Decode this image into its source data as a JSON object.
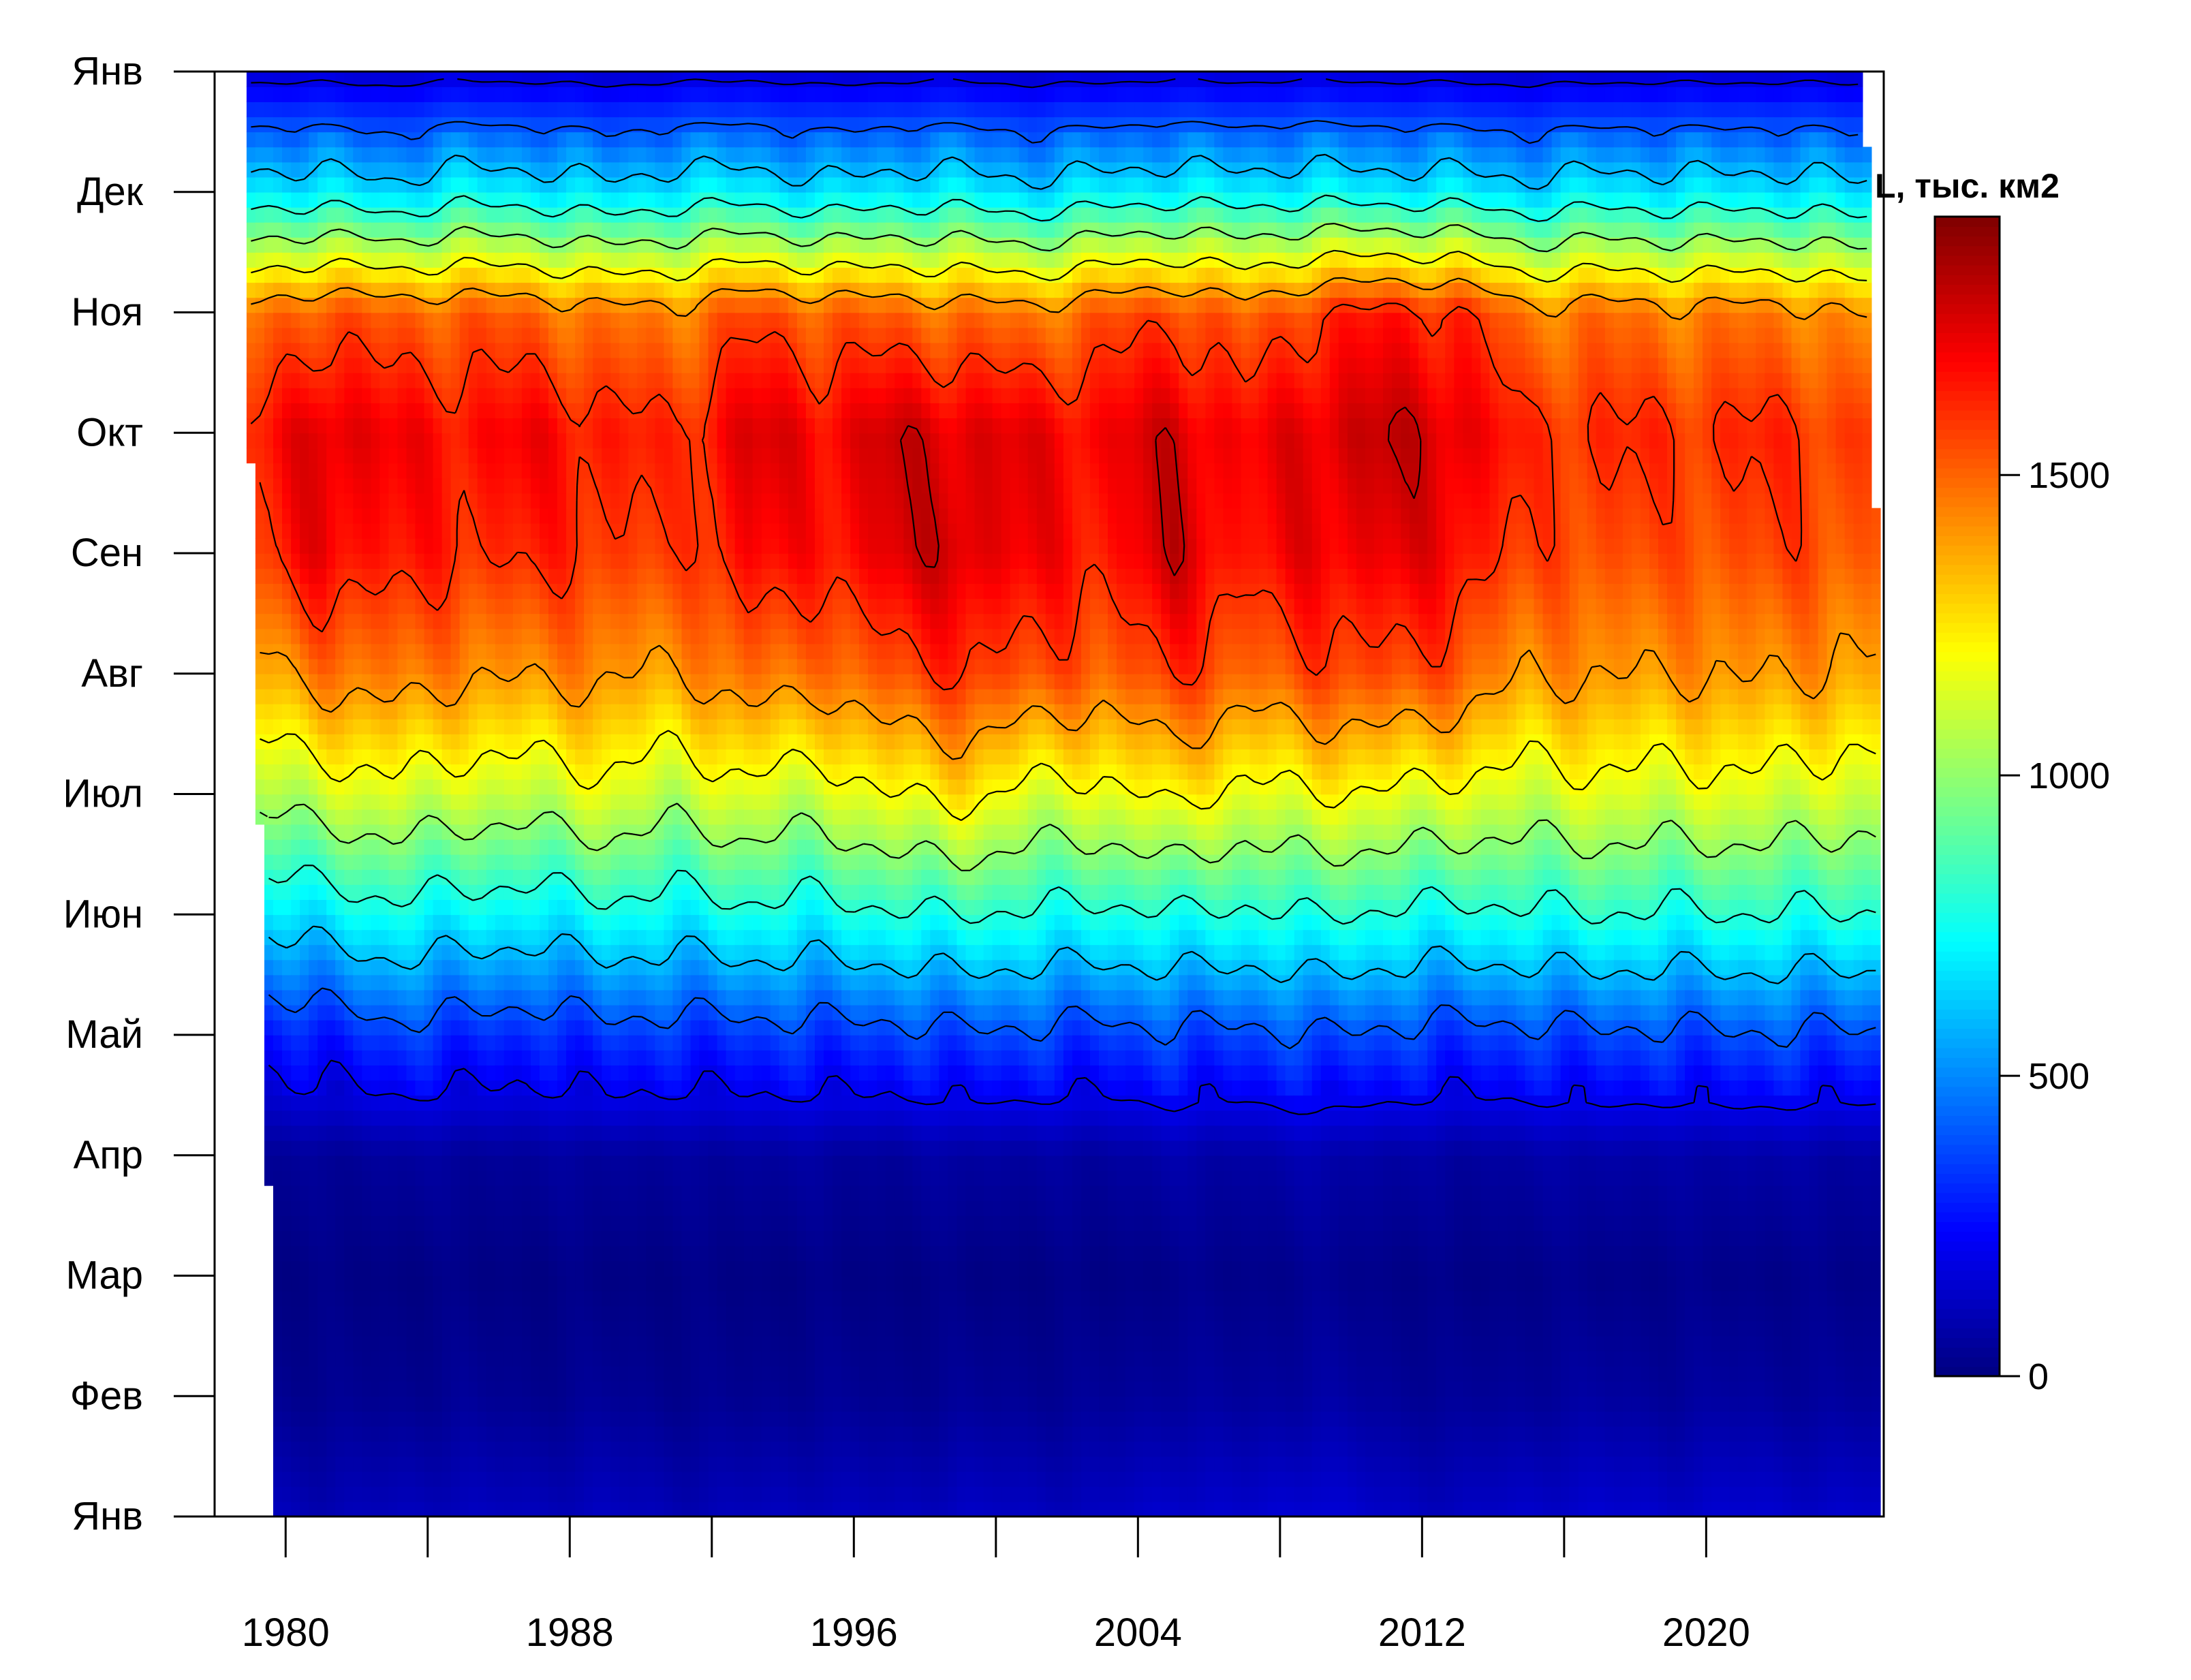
{
  "chart_data": {
    "type": "heatmap",
    "title": "",
    "xlabel": "",
    "ylabel": "",
    "x_ticks": [
      1980,
      1988,
      1996,
      2004,
      2012,
      2020
    ],
    "x_minor_ticks": [
      1980,
      1984,
      1988,
      1992,
      1996,
      2000,
      2004,
      2008,
      2012,
      2016,
      2020
    ],
    "xlim": [
      1978,
      2025
    ],
    "y_ticks": [
      "Янв",
      "Фев",
      "Мар",
      "Апр",
      "Май",
      "Июн",
      "Июл",
      "Авг",
      "Сен",
      "Окт",
      "Ноя",
      "Дек",
      "Янв"
    ],
    "ylim": [
      0,
      12
    ],
    "colorbar": {
      "title": "L, тыс. км2",
      "ticks": [
        0,
        500,
        1000,
        1500
      ],
      "range": [
        0,
        1930
      ]
    },
    "data_start": [
      1978.9,
      10.2
    ],
    "data_end": [
      2024.9,
      6.9
    ],
    "contour_step": 200,
    "description_grid": {
      "years": [
        1979,
        1981,
        1983,
        1985,
        1987,
        1989,
        1991,
        1993,
        1995,
        1997,
        1999,
        2001,
        2003,
        2005,
        2007,
        2009,
        2011,
        2013,
        2015,
        2017,
        2019,
        2021,
        2023,
        2024
      ],
      "months": [
        0,
        1,
        2,
        3,
        4,
        5,
        6,
        7,
        8,
        9,
        10,
        11,
        12
      ],
      "values": [
        [
          120,
          40,
          10,
          50,
          250,
          650,
          1050,
          1350,
          1550,
          1600,
          1450,
          700,
          150
        ],
        [
          100,
          30,
          10,
          40,
          300,
          700,
          1100,
          1450,
          1720,
          1780,
          1550,
          700,
          150
        ],
        [
          110,
          30,
          10,
          60,
          350,
          750,
          1150,
          1480,
          1650,
          1700,
          1500,
          650,
          140
        ],
        [
          120,
          40,
          10,
          50,
          330,
          720,
          1100,
          1420,
          1620,
          1680,
          1520,
          720,
          160
        ],
        [
          110,
          30,
          10,
          50,
          300,
          700,
          1100,
          1420,
          1620,
          1700,
          1500,
          700,
          150
        ],
        [
          120,
          40,
          10,
          60,
          350,
          750,
          1150,
          1430,
          1600,
          1650,
          1450,
          650,
          140
        ],
        [
          100,
          30,
          10,
          50,
          330,
          720,
          1080,
          1380,
          1550,
          1600,
          1450,
          700,
          150
        ],
        [
          110,
          30,
          10,
          60,
          340,
          760,
          1150,
          1500,
          1700,
          1760,
          1550,
          720,
          160
        ],
        [
          120,
          40,
          10,
          60,
          350,
          740,
          1100,
          1450,
          1650,
          1700,
          1520,
          650,
          140
        ],
        [
          110,
          30,
          10,
          50,
          350,
          780,
          1200,
          1550,
          1750,
          1780,
          1500,
          700,
          150
        ],
        [
          130,
          40,
          10,
          70,
          380,
          800,
          1250,
          1600,
          1780,
          1760,
          1480,
          700,
          160
        ],
        [
          120,
          40,
          10,
          60,
          370,
          780,
          1150,
          1550,
          1700,
          1720,
          1450,
          650,
          140
        ],
        [
          120,
          40,
          10,
          60,
          350,
          760,
          1150,
          1500,
          1650,
          1700,
          1520,
          700,
          150
        ],
        [
          150,
          60,
          20,
          80,
          380,
          790,
          1250,
          1600,
          1780,
          1780,
          1580,
          720,
          160
        ],
        [
          140,
          50,
          20,
          70,
          360,
          770,
          1150,
          1500,
          1650,
          1680,
          1480,
          700,
          150
        ],
        [
          170,
          70,
          30,
          90,
          400,
          810,
          1200,
          1550,
          1720,
          1760,
          1600,
          720,
          160
        ],
        [
          130,
          50,
          20,
          70,
          370,
          780,
          1180,
          1570,
          1730,
          1800,
          1650,
          700,
          150
        ],
        [
          120,
          40,
          10,
          60,
          350,
          760,
          1150,
          1520,
          1700,
          1760,
          1620,
          700,
          150
        ],
        [
          140,
          50,
          20,
          70,
          360,
          780,
          1120,
          1400,
          1550,
          1600,
          1450,
          650,
          140
        ],
        [
          150,
          60,
          20,
          80,
          380,
          800,
          1150,
          1420,
          1560,
          1620,
          1480,
          700,
          150
        ],
        [
          140,
          50,
          20,
          70,
          370,
          780,
          1130,
          1400,
          1530,
          1600,
          1450,
          680,
          150
        ],
        [
          150,
          60,
          20,
          80,
          390,
          800,
          1150,
          1420,
          1560,
          1620,
          1460,
          690,
          150
        ],
        [
          140,
          50,
          20,
          70,
          380,
          790,
          1120,
          1400,
          1550,
          1600,
          1450,
          680,
          150
        ],
        [
          140,
          50,
          20,
          70,
          380,
          790,
          1100,
          1380,
          1530,
          1580,
          1400,
          650,
          150
        ]
      ]
    }
  }
}
